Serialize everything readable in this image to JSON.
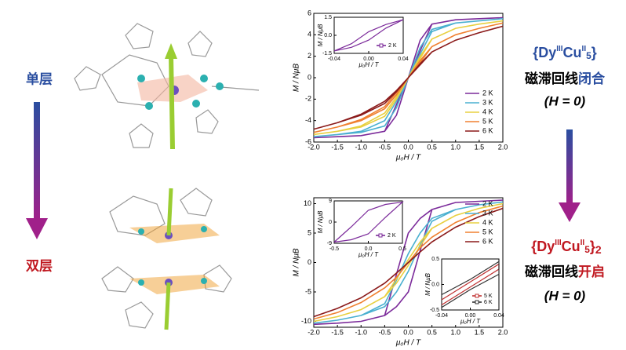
{
  "labels": {
    "single": "单层",
    "double": "双层",
    "formula1": [
      "{Dy",
      "III",
      "Cu",
      "II",
      "5",
      "}"
    ],
    "formula2": [
      "{Dy",
      "III",
      "Cu",
      "II",
      "5",
      "}",
      "2"
    ],
    "hyst1": [
      "磁滞回线",
      "闭合"
    ],
    "cond1": "(H = 0)",
    "hyst2": [
      "磁滞回线",
      "开启"
    ],
    "cond2": "(H = 0)"
  },
  "chart_data": [
    {
      "type": "line",
      "xlabel": "μ₀H / T",
      "ylabel": "M / NμB",
      "xlim": [
        -2,
        2
      ],
      "ylim": [
        -6,
        6
      ],
      "xticks": [
        {
          "value": -2,
          "label": "-2.0"
        },
        -1.5,
        {
          "value": -1,
          "label": "-1.0"
        },
        -0.5,
        {
          "value": 0,
          "label": "0.0"
        },
        0.5,
        {
          "value": 1,
          "label": "1.0"
        },
        1.5,
        {
          "value": 2,
          "label": "2.0"
        }
      ],
      "yticks": [
        -6,
        -4,
        -2,
        0,
        2,
        4,
        6
      ],
      "legend": "lower right",
      "x": [
        -2,
        -1.5,
        -1,
        -0.5,
        -0.25,
        0,
        0.25,
        0.5,
        1,
        1.5,
        2,
        2,
        1.5,
        1,
        0.5,
        0.25,
        0,
        -0.25,
        -0.5,
        -1,
        -1.5,
        -2
      ],
      "series": [
        {
          "name": "2 K",
          "color": "#7b2a9a",
          "values": [
            -5.6,
            -5.5,
            -5.4,
            -5.0,
            -2.5,
            0,
            3.5,
            5.0,
            5.4,
            5.5,
            5.6,
            5.6,
            5.5,
            5.4,
            5.0,
            2.5,
            0,
            -3.5,
            -5.0,
            -5.4,
            -5.5,
            -5.6
          ]
        },
        {
          "name": "3 K",
          "color": "#4ab0d0",
          "values": [
            -5.5,
            -5.3,
            -5.0,
            -4.0,
            -2.2,
            0,
            2.8,
            4.5,
            5.1,
            5.3,
            5.5,
            5.5,
            5.3,
            5.1,
            4.3,
            2.2,
            0,
            -2.8,
            -4.5,
            -5.1,
            -5.3,
            -5.5
          ]
        },
        {
          "name": "4 K",
          "color": "#e8d040",
          "values": [
            -5.3,
            -5.0,
            -4.5,
            -3.3,
            -1.8,
            0,
            2.0,
            3.6,
            4.6,
            5.0,
            5.3,
            5.3,
            5.0,
            4.6,
            3.6,
            1.8,
            0,
            -2.0,
            -3.6,
            -4.6,
            -5.0,
            -5.3
          ]
        },
        {
          "name": "5 K",
          "color": "#f08030",
          "values": [
            -5.1,
            -4.6,
            -3.9,
            -2.7,
            -1.4,
            0,
            1.6,
            2.9,
            4.0,
            4.6,
            5.1,
            5.1,
            4.6,
            4.0,
            2.9,
            1.4,
            0,
            -1.6,
            -2.9,
            -4.0,
            -4.6,
            -5.1
          ]
        },
        {
          "name": "6 K",
          "color": "#8b1a1a",
          "values": [
            -4.8,
            -4.2,
            -3.4,
            -2.2,
            -1.2,
            0,
            1.3,
            2.4,
            3.5,
            4.2,
            4.8,
            4.8,
            4.2,
            3.5,
            2.4,
            1.2,
            0,
            -1.3,
            -2.4,
            -3.5,
            -4.2,
            -4.8
          ]
        }
      ]
    },
    {
      "type": "line",
      "xlabel": "μ₀H / T",
      "ylabel": "M / NμB",
      "xlim": [
        -0.04,
        0.04
      ],
      "ylim": [
        -1.5,
        1.5
      ],
      "xticks": [
        -0.04,
        {
          "value": 0,
          "label": "0.00"
        },
        0.04
      ],
      "yticks": [
        -1.5,
        {
          "value": 0,
          "label": "0.0"
        },
        1.5
      ],
      "legend": "lower right",
      "x": [
        -0.04,
        -0.02,
        0,
        0.02,
        0.04,
        0.04,
        0.02,
        0,
        -0.02,
        -0.04
      ],
      "series": [
        {
          "name": "2 K",
          "color": "#7b2a9a",
          "values": [
            -1.3,
            -1.0,
            -0.4,
            0.6,
            1.3,
            1.3,
            0.9,
            0.3,
            -0.7,
            -1.3
          ]
        }
      ]
    },
    {
      "type": "line",
      "xlabel": "μ₀H / T",
      "ylabel": "M / NμB",
      "xlim": [
        -2,
        2
      ],
      "ylim": [
        -11,
        11
      ],
      "xticks": [
        {
          "value": -2,
          "label": "-2.0"
        },
        -1.5,
        {
          "value": -1,
          "label": "-1.0"
        },
        -0.5,
        {
          "value": 0,
          "label": "0.0"
        },
        0.5,
        {
          "value": 1,
          "label": "1.0"
        },
        1.5,
        {
          "value": 2,
          "label": "2.0"
        }
      ],
      "yticks": [
        -10,
        -5,
        0,
        5,
        10
      ],
      "legend": "upper right",
      "x": [
        -2,
        -1.5,
        -1,
        -0.5,
        -0.25,
        0,
        0.25,
        0.5,
        1,
        1.5,
        2,
        2,
        1.5,
        1,
        0.5,
        0.25,
        0,
        -0.25,
        -0.5,
        -1,
        -1.5,
        -2
      ],
      "series": [
        {
          "name": "2 K",
          "color": "#7b2a9a",
          "values": [
            -10.5,
            -10.3,
            -10,
            -9,
            -7.5,
            -5,
            2,
            9,
            10.2,
            10.4,
            10.6,
            10.6,
            10.4,
            10.2,
            9,
            7.5,
            5,
            -2,
            -9,
            -10,
            -10.3,
            -10.5
          ]
        },
        {
          "name": "3 K",
          "color": "#4ab0d0",
          "values": [
            -10.3,
            -9.8,
            -9,
            -7.5,
            -5,
            -1.5,
            3,
            7,
            9,
            9.8,
            10.3,
            10.3,
            9.8,
            9,
            7.5,
            5,
            1.5,
            -3,
            -7,
            -9,
            -9.8,
            -10.3
          ]
        },
        {
          "name": "4 K",
          "color": "#e8d040",
          "values": [
            -10,
            -9.2,
            -8,
            -5.8,
            -3.5,
            -0.5,
            2.8,
            5.8,
            8,
            9.2,
            10,
            10,
            9.2,
            8,
            5.8,
            3.5,
            0.5,
            -2.8,
            -5.8,
            -8,
            -9.2,
            -10
          ]
        },
        {
          "name": "5 K",
          "color": "#f08030",
          "values": [
            -9.6,
            -8.5,
            -6.8,
            -4.3,
            -2.5,
            0,
            2.5,
            4.3,
            6.8,
            8.5,
            9.6,
            9.6,
            8.5,
            6.8,
            4.3,
            2.5,
            0,
            -2.5,
            -4.3,
            -6.8,
            -8.5,
            -9.6
          ]
        },
        {
          "name": "6 K",
          "color": "#8b1a1a",
          "values": [
            -9.2,
            -7.8,
            -6,
            -3.5,
            -1.8,
            0,
            1.8,
            3.5,
            6,
            7.8,
            9.2,
            9.2,
            7.8,
            6,
            3.5,
            1.8,
            0,
            -1.8,
            -3.5,
            -6,
            -7.8,
            -9.2
          ]
        }
      ]
    },
    {
      "type": "line",
      "xlabel": "μ₀H / T",
      "ylabel": "M / NμB",
      "xlim": [
        -0.5,
        0.5
      ],
      "ylim": [
        -9,
        9
      ],
      "xticks": [
        -0.5,
        {
          "value": 0,
          "label": "0.0"
        },
        0.5
      ],
      "yticks": [
        -9,
        0,
        9
      ],
      "legend": "lower right",
      "x": [
        -0.5,
        -0.25,
        0,
        0.25,
        0.5,
        0.5,
        0.25,
        0,
        -0.25,
        -0.5
      ],
      "series": [
        {
          "name": "2 K",
          "color": "#7b2a9a",
          "values": [
            -8.5,
            -7.5,
            -5,
            2,
            8.5,
            8.5,
            7.5,
            5,
            -2,
            -8.5
          ]
        }
      ]
    },
    {
      "type": "line",
      "xlabel": "μ₀H / T",
      "ylabel": "M / NμB",
      "xlim": [
        -0.04,
        0.04
      ],
      "ylim": [
        -0.5,
        0.5
      ],
      "xticks": [
        -0.04,
        {
          "value": 0,
          "label": "0.00"
        },
        0.04
      ],
      "yticks": [
        -0.5,
        {
          "value": 0,
          "label": "0.0"
        },
        0.5
      ],
      "legend": "lower right",
      "x": [
        -0.04,
        0,
        0.04,
        0.04,
        0,
        -0.04
      ],
      "series": [
        {
          "name": "5 K",
          "color": "#c03030",
          "values": [
            -0.4,
            -0.05,
            0.3,
            0.4,
            0.05,
            -0.3
          ]
        },
        {
          "name": "6 K",
          "color": "#303030",
          "values": [
            -0.2,
            0.1,
            0.45,
            0.2,
            -0.1,
            -0.45
          ]
        }
      ]
    }
  ]
}
